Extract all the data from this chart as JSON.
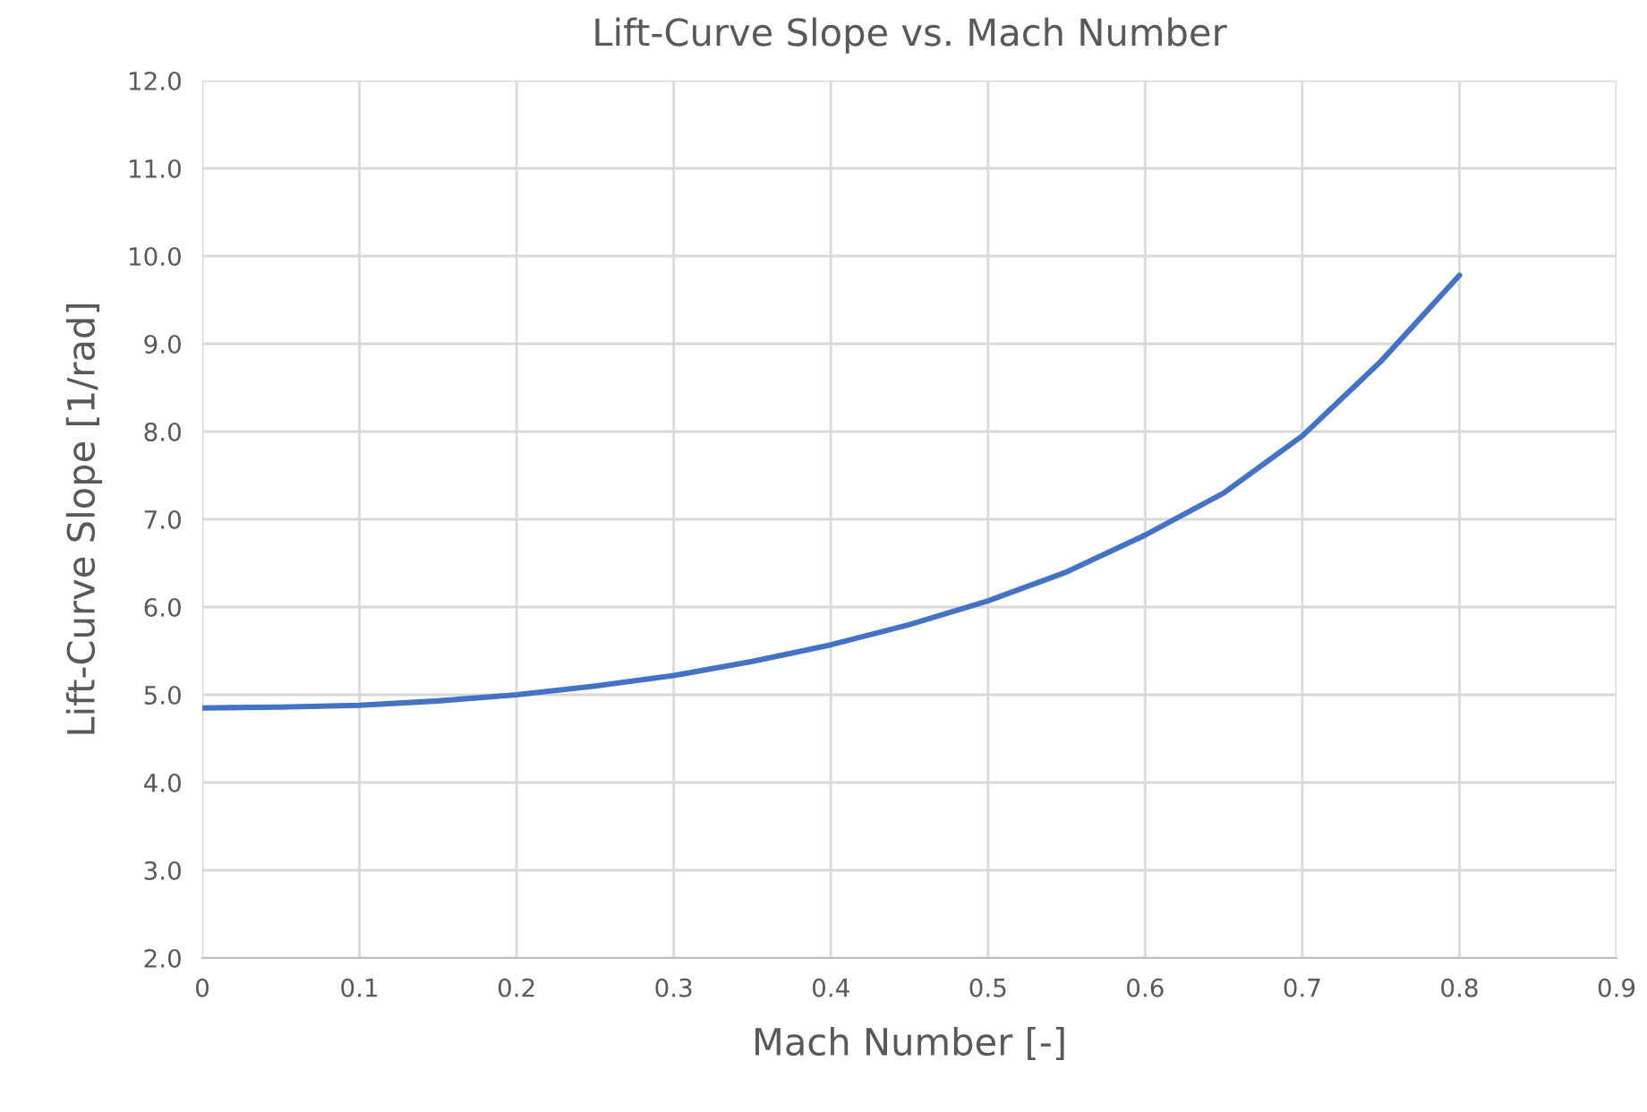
{
  "chart_data": {
    "type": "line",
    "title": "Lift-Curve Slope vs. Mach Number",
    "xlabel": "Mach Number [-]",
    "ylabel": "Lift-Curve Slope [1/rad]",
    "series": [
      {
        "color": "#4472c4",
        "x": [
          0,
          0.05,
          0.1,
          0.15,
          0.2,
          0.25,
          0.3,
          0.35,
          0.4,
          0.45,
          0.5,
          0.55,
          0.6,
          0.65,
          0.7,
          0.75,
          0.8
        ],
        "values": [
          4.85,
          4.86,
          4.88,
          4.93,
          5.0,
          5.1,
          5.22,
          5.38,
          5.57,
          5.8,
          6.07,
          6.4,
          6.82,
          7.3,
          7.95,
          8.8,
          9.78
        ]
      }
    ],
    "xlim": [
      0,
      0.9
    ],
    "xticks": [
      0,
      0.1,
      0.2,
      0.3,
      0.4,
      0.5,
      0.6,
      0.7,
      0.8,
      0.9
    ],
    "ylim": [
      2,
      12
    ],
    "yticks": [
      {
        "value": 2,
        "label": "2.0"
      },
      {
        "value": 3,
        "label": "3.0"
      },
      {
        "value": 4,
        "label": "4.0"
      },
      {
        "value": 5,
        "label": "5.0"
      },
      {
        "value": 6,
        "label": "6.0"
      },
      {
        "value": 7,
        "label": "7.0"
      },
      {
        "value": 8,
        "label": "8.0"
      },
      {
        "value": 9,
        "label": "9.0"
      },
      {
        "value": 10,
        "label": "10.0"
      },
      {
        "value": 11,
        "label": "11.0"
      },
      {
        "value": 12,
        "label": "12.0"
      }
    ],
    "grid": true,
    "marker": "none",
    "line_style": "solid",
    "legend": false
  }
}
